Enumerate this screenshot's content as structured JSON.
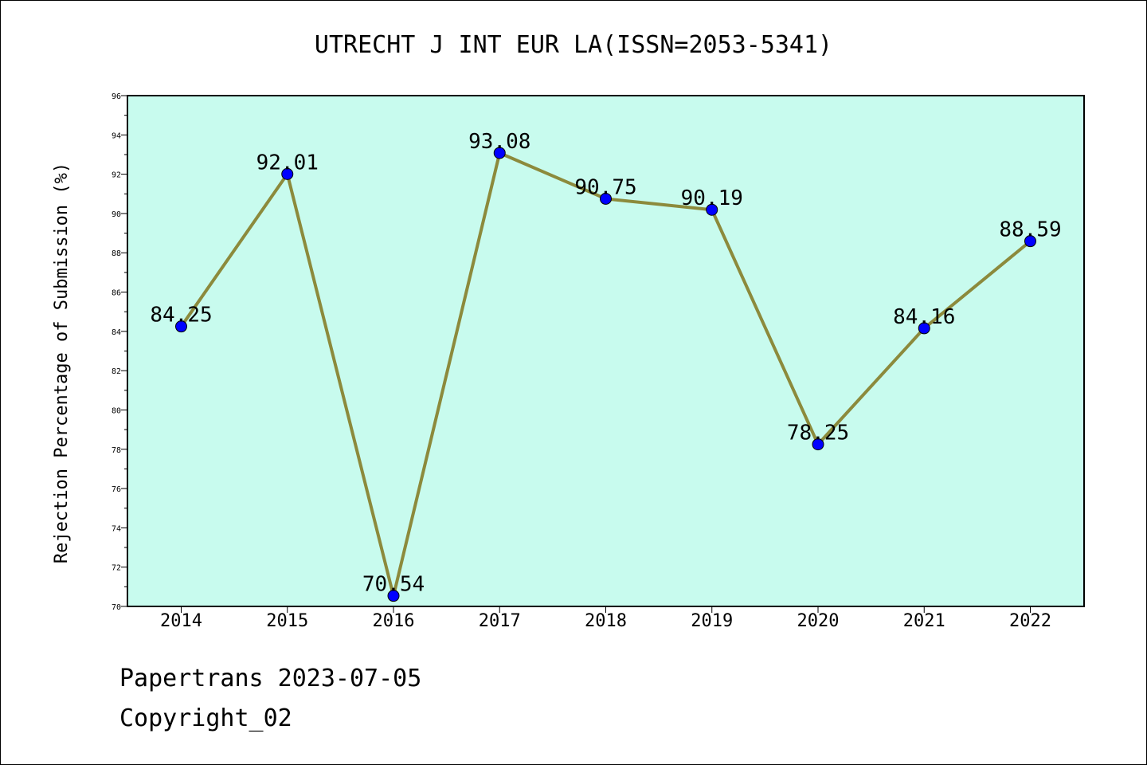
{
  "chart_data": {
    "type": "line",
    "title": "UTRECHT J INT EUR LA(ISSN=2053-5341)",
    "xlabel": "",
    "ylabel": "Rejection Percentage of Submission (%)",
    "categories": [
      "2014",
      "2015",
      "2016",
      "2017",
      "2018",
      "2019",
      "2020",
      "2021",
      "2022"
    ],
    "values": [
      84.25,
      92.01,
      70.54,
      93.08,
      90.75,
      90.19,
      78.25,
      84.16,
      88.59
    ],
    "data_labels": [
      "84.25",
      "92.01",
      "70.54",
      "93.08",
      "90.75",
      "90.19",
      "78.25",
      "84.16",
      "88.59"
    ],
    "yticks": [
      "70",
      "72",
      "74",
      "76",
      "78",
      "80",
      "82",
      "84",
      "86",
      "88",
      "90",
      "92",
      "94",
      "96"
    ],
    "ylim": [
      70,
      96
    ],
    "grid": false,
    "colors": {
      "plot_background": "#c8fbee",
      "line": "#8c8a3c",
      "marker": "#0000ff"
    }
  },
  "footer": {
    "source": "Papertrans 2023-07-05",
    "copyright": "Copyright_02"
  }
}
